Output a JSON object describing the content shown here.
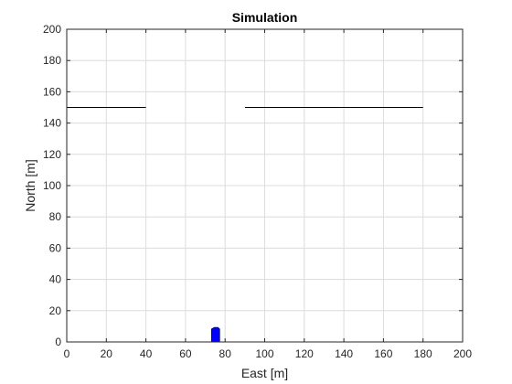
{
  "chart_data": {
    "type": "line",
    "title": "Simulation",
    "xlabel": "East [m]",
    "ylabel": "North [m]",
    "xlim": [
      0,
      200
    ],
    "ylim": [
      0,
      200
    ],
    "xticks": [
      0,
      20,
      40,
      60,
      80,
      100,
      120,
      140,
      160,
      180,
      200
    ],
    "yticks": [
      0,
      20,
      40,
      60,
      80,
      100,
      120,
      140,
      160,
      180,
      200
    ],
    "grid": true,
    "legend": "none",
    "series": [
      {
        "x": [
          0,
          40
        ],
        "y": [
          150,
          150
        ],
        "color": "#000000"
      },
      {
        "x": [
          90,
          180
        ],
        "y": [
          150,
          150
        ],
        "color": "#000000"
      }
    ],
    "vessel": {
      "shape": "polygon",
      "color": "#0000ff",
      "outline": "#000080",
      "x": [
        73.2,
        73.2,
        74.6,
        76.4,
        77.2,
        77.2
      ],
      "y": [
        0,
        8.2,
        9.2,
        9.2,
        8.2,
        0
      ]
    }
  }
}
